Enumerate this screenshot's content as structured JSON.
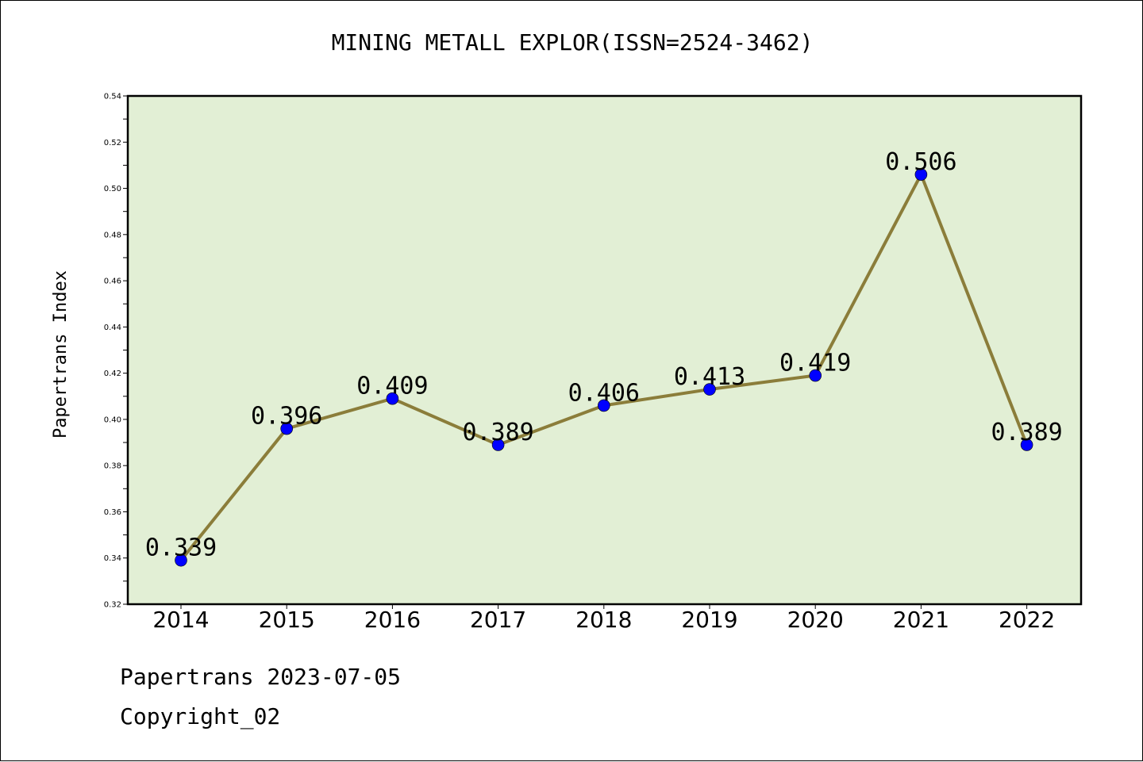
{
  "title": "MINING METALL EXPLOR(ISSN=2524-3462)",
  "footer": {
    "date_line": "Papertrans 2023-07-05",
    "copyright_line": "Copyright_02"
  },
  "colors": {
    "plot_background": "#e2efd5",
    "line": "#8b7d3a",
    "marker": "#0000ff"
  },
  "chart_data": {
    "type": "line",
    "title": "MINING METALL EXPLOR(ISSN=2524-3462)",
    "xlabel": "",
    "ylabel": "Papertrans Index",
    "categories": [
      "2014",
      "2015",
      "2016",
      "2017",
      "2018",
      "2019",
      "2020",
      "2021",
      "2022"
    ],
    "values": [
      0.339,
      0.396,
      0.409,
      0.389,
      0.406,
      0.413,
      0.419,
      0.506,
      0.389
    ],
    "data_labels": [
      "0.339",
      "0.396",
      "0.409",
      "0.389",
      "0.406",
      "0.413",
      "0.419",
      "0.506",
      "0.389"
    ],
    "ylim": [
      0.32,
      0.54
    ],
    "yticks": [
      "0.32",
      "0.34",
      "0.36",
      "0.38",
      "0.40",
      "0.42",
      "0.44",
      "0.46",
      "0.48",
      "0.50",
      "0.52",
      "0.54"
    ],
    "grid": false,
    "legend": "none"
  }
}
